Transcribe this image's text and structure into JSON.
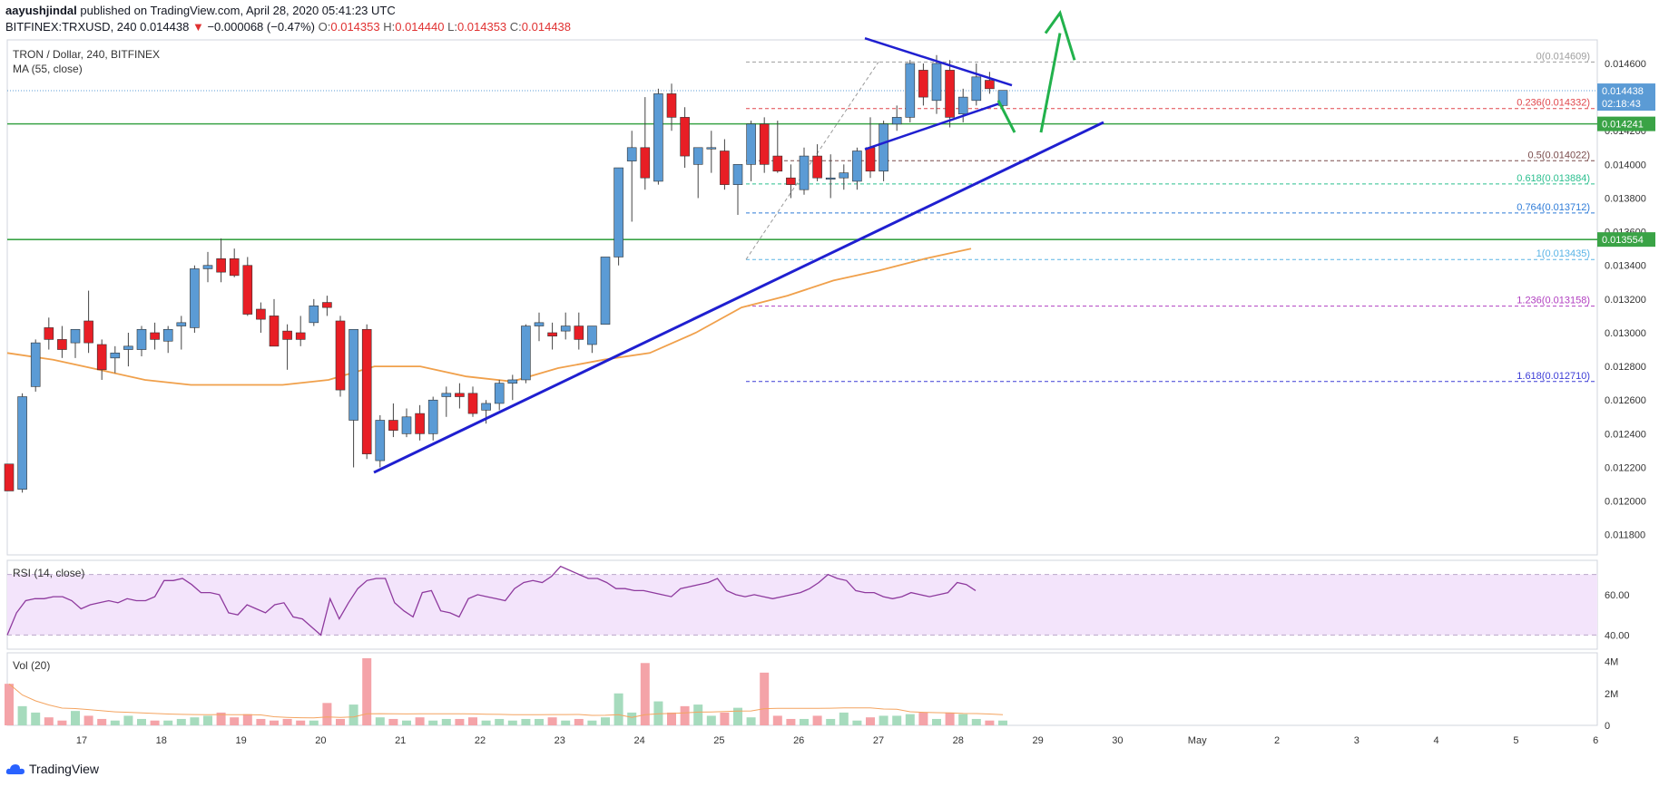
{
  "header": {
    "author": "aayushjindal",
    "published_text": "published on TradingView.com, April 28, 2020 05:41:23 UTC",
    "symbol": "BITFINEX:TRXUSD, 240",
    "last": "0.014438",
    "change_arrow": "▼",
    "change": "−0.000068 (−0.47%)",
    "o_label": "O:",
    "o": "0.014353",
    "h_label": "H:",
    "h": "0.014440",
    "l_label": "L:",
    "l": "0.014353",
    "c_label": "C:",
    "c": "0.014438"
  },
  "legend": {
    "title": "TRON / Dollar, 240, BITFINEX",
    "ma": "MA (55, close)",
    "rsi": "RSI (14, close)",
    "vol": "Vol (20)"
  },
  "footer": {
    "brand": "TradingView",
    "icon": "tradingview-cloud-icon"
  },
  "colors": {
    "up": "#5b9bd5",
    "down": "#e81e25",
    "ma": "#f0a04b",
    "trend": "#1f1fd0",
    "support": "#3aa346",
    "arrow": "#22b24c",
    "rsi": "#8e3a9e",
    "rsi_band": "#f3e4fb",
    "vol_up": "#a6dbbd",
    "vol_down": "#f4a3a8"
  },
  "chart_data": {
    "type": "candlestick",
    "title": "TRON / Dollar, 240, BITFINEX",
    "x_ticks": [
      "17",
      "18",
      "19",
      "20",
      "21",
      "22",
      "23",
      "24",
      "25",
      "26",
      "27",
      "28",
      "29",
      "30",
      "May",
      "2",
      "3",
      "4",
      "5",
      "6"
    ],
    "y_ticks": [
      "0.014600",
      "0.014400",
      "0.014200",
      "0.014000",
      "0.013800",
      "0.013600",
      "0.013400",
      "0.013200",
      "0.013000",
      "0.012800",
      "0.012600",
      "0.012400",
      "0.012200",
      "0.012000",
      "0.011800"
    ],
    "ylim": [
      0.01168,
      0.01474
    ],
    "last_price": {
      "value": 0.014438,
      "label": "0.014438",
      "countdown": "02:18:43"
    },
    "support_levels": [
      {
        "value": 0.014241,
        "label": "0.014241"
      },
      {
        "value": 0.013554,
        "label": "0.013554"
      }
    ],
    "fibonacci": [
      {
        "ratio": "0",
        "value": 0.014609,
        "label": "0(0.014609)",
        "color": "#9e9e9e"
      },
      {
        "ratio": "0.236",
        "value": 0.014332,
        "label": "0.236(0.014332)",
        "color": "#e0474c"
      },
      {
        "ratio": "0.5",
        "value": 0.014022,
        "label": "0.5(0.014022)",
        "color": "#7a4b4b"
      },
      {
        "ratio": "0.618",
        "value": 0.013884,
        "label": "0.618(0.013884)",
        "color": "#2bbf8f"
      },
      {
        "ratio": "0.764",
        "value": 0.013712,
        "label": "0.764(0.013712)",
        "color": "#2d7bd8"
      },
      {
        "ratio": "1",
        "value": 0.013435,
        "label": "1(0.013435)",
        "color": "#59b4e6"
      },
      {
        "ratio": "1.236",
        "value": 0.013158,
        "label": "1.236(0.013158)",
        "color": "#b13fc0"
      },
      {
        "ratio": "1.618",
        "value": 0.01271,
        "label": "1.618(0.012710)",
        "color": "#3b3bd6"
      }
    ],
    "candles": [
      [
        0.01222,
        0.01222,
        0.01206,
        0.01206
      ],
      [
        0.01207,
        0.01264,
        0.01205,
        0.01262
      ],
      [
        0.01268,
        0.01296,
        0.01265,
        0.01294
      ],
      [
        0.01303,
        0.01309,
        0.0129,
        0.01296
      ],
      [
        0.01296,
        0.01304,
        0.01285,
        0.0129
      ],
      [
        0.01294,
        0.01302,
        0.01285,
        0.01302
      ],
      [
        0.01307,
        0.01325,
        0.01288,
        0.01294
      ],
      [
        0.01293,
        0.01296,
        0.01272,
        0.01278
      ],
      [
        0.01285,
        0.01292,
        0.01276,
        0.01288
      ],
      [
        0.0129,
        0.013,
        0.0128,
        0.01292
      ],
      [
        0.0129,
        0.01304,
        0.01286,
        0.01302
      ],
      [
        0.013,
        0.01306,
        0.0129,
        0.01296
      ],
      [
        0.01295,
        0.01304,
        0.01288,
        0.01302
      ],
      [
        0.01304,
        0.0131,
        0.0129,
        0.01306
      ],
      [
        0.01303,
        0.0134,
        0.013,
        0.01338
      ],
      [
        0.01338,
        0.01348,
        0.0133,
        0.0134
      ],
      [
        0.01344,
        0.01356,
        0.0133,
        0.01336
      ],
      [
        0.01344,
        0.0135,
        0.01333,
        0.01334
      ],
      [
        0.0134,
        0.01345,
        0.0131,
        0.01311
      ],
      [
        0.01314,
        0.01318,
        0.013,
        0.01308
      ],
      [
        0.0131,
        0.0132,
        0.01292,
        0.01292
      ],
      [
        0.01301,
        0.01305,
        0.01278,
        0.01296
      ],
      [
        0.013,
        0.0131,
        0.01292,
        0.01296
      ],
      [
        0.01306,
        0.0132,
        0.01304,
        0.01316
      ],
      [
        0.01318,
        0.01322,
        0.0131,
        0.01315
      ],
      [
        0.01307,
        0.0131,
        0.01262,
        0.01266
      ],
      [
        0.01248,
        0.01302,
        0.0122,
        0.01302
      ],
      [
        0.01302,
        0.01305,
        0.01225,
        0.01228
      ],
      [
        0.01224,
        0.01251,
        0.0122,
        0.01248
      ],
      [
        0.01248,
        0.01258,
        0.01238,
        0.01242
      ],
      [
        0.0124,
        0.01255,
        0.01238,
        0.0125
      ],
      [
        0.01252,
        0.01257,
        0.01236,
        0.0124
      ],
      [
        0.0124,
        0.01262,
        0.01236,
        0.0126
      ],
      [
        0.01262,
        0.01268,
        0.0125,
        0.01264
      ],
      [
        0.01264,
        0.0127,
        0.01255,
        0.01262
      ],
      [
        0.01264,
        0.01268,
        0.0125,
        0.01252
      ],
      [
        0.01254,
        0.0126,
        0.01246,
        0.01258
      ],
      [
        0.01258,
        0.01272,
        0.01254,
        0.0127
      ],
      [
        0.0127,
        0.01275,
        0.0126,
        0.01272
      ],
      [
        0.01272,
        0.01305,
        0.0127,
        0.01304
      ],
      [
        0.01304,
        0.01312,
        0.01295,
        0.01306
      ],
      [
        0.013,
        0.01306,
        0.0129,
        0.01298
      ],
      [
        0.01301,
        0.01312,
        0.01296,
        0.01304
      ],
      [
        0.01304,
        0.01312,
        0.0129,
        0.01296
      ],
      [
        0.01293,
        0.01304,
        0.01288,
        0.01304
      ],
      [
        0.01305,
        0.01345,
        0.01305,
        0.01345
      ],
      [
        0.01345,
        0.01398,
        0.0134,
        0.01398
      ],
      [
        0.01402,
        0.0142,
        0.01366,
        0.0141
      ],
      [
        0.0141,
        0.0144,
        0.01385,
        0.01392
      ],
      [
        0.0139,
        0.01445,
        0.01388,
        0.01442
      ],
      [
        0.01442,
        0.01448,
        0.0142,
        0.01428
      ],
      [
        0.01428,
        0.01434,
        0.01398,
        0.01405
      ],
      [
        0.014,
        0.0141,
        0.0138,
        0.0141
      ],
      [
        0.0141,
        0.0142,
        0.01395,
        0.0141
      ],
      [
        0.01408,
        0.01415,
        0.01385,
        0.01388
      ],
      [
        0.01388,
        0.014,
        0.0137,
        0.014
      ],
      [
        0.014,
        0.01426,
        0.0139,
        0.01424
      ],
      [
        0.01424,
        0.01428,
        0.01395,
        0.014
      ],
      [
        0.01405,
        0.01426,
        0.01395,
        0.01396
      ],
      [
        0.01392,
        0.014,
        0.0138,
        0.01388
      ],
      [
        0.01385,
        0.0141,
        0.01382,
        0.01405
      ],
      [
        0.01405,
        0.01412,
        0.0139,
        0.01392
      ],
      [
        0.01392,
        0.01406,
        0.0138,
        0.01392
      ],
      [
        0.01392,
        0.014,
        0.01385,
        0.01395
      ],
      [
        0.0139,
        0.0141,
        0.01385,
        0.01408
      ],
      [
        0.0141,
        0.01428,
        0.01392,
        0.01396
      ],
      [
        0.01396,
        0.01426,
        0.0139,
        0.01424
      ],
      [
        0.01424,
        0.01435,
        0.0142,
        0.01428
      ],
      [
        0.01428,
        0.01462,
        0.01425,
        0.0146
      ],
      [
        0.01456,
        0.0146,
        0.01435,
        0.0144
      ],
      [
        0.01438,
        0.01465,
        0.0143,
        0.0146
      ],
      [
        0.01456,
        0.01462,
        0.01422,
        0.01428
      ],
      [
        0.0143,
        0.01445,
        0.01425,
        0.0144
      ],
      [
        0.01438,
        0.0146,
        0.01435,
        0.01452
      ],
      [
        0.0145,
        0.01455,
        0.01442,
        0.01445
      ],
      [
        0.01435,
        0.01444,
        0.01434,
        0.01444
      ]
    ],
    "ma55": [
      0.01288,
      0.01284,
      0.01278,
      0.01272,
      0.01269,
      0.01269,
      0.01269,
      0.01272,
      0.0128,
      0.0128,
      0.01274,
      0.01271,
      0.01279,
      0.01284,
      0.01288,
      0.013,
      0.01315,
      0.01322,
      0.01331,
      0.01337,
      0.01344,
      0.0135
    ],
    "rsi": {
      "levels": [
        70,
        40
      ],
      "ylim": [
        33,
        77
      ],
      "y_ticks": [
        "60.00",
        "40.00"
      ],
      "values": [
        40,
        51,
        57,
        58,
        58,
        59,
        59,
        57,
        53,
        55,
        56,
        57,
        56,
        58,
        57,
        57,
        59,
        67,
        67,
        68,
        65,
        61,
        61,
        60,
        51,
        50,
        55,
        53,
        51,
        55,
        56,
        49,
        48,
        44,
        40,
        58,
        48,
        56,
        63,
        67,
        68,
        68,
        56,
        52,
        49,
        61,
        62,
        52,
        51,
        49,
        58,
        60,
        59,
        58,
        57,
        63,
        66,
        67,
        66,
        69,
        74,
        72,
        70,
        68,
        68,
        66,
        63,
        63,
        62,
        62,
        61,
        60,
        59,
        63,
        64,
        65,
        66,
        68,
        62,
        60,
        59,
        60,
        59,
        58,
        59,
        60,
        61,
        63,
        66,
        70,
        68,
        67,
        62,
        61,
        61,
        59,
        58,
        59,
        61,
        60,
        59,
        60,
        61,
        66,
        65,
        62
      ]
    },
    "volume": {
      "ylim": [
        0,
        4.2
      ],
      "y_ticks": [
        "4M",
        "2M",
        "0"
      ],
      "values": [
        2.6,
        1.2,
        0.8,
        0.5,
        0.3,
        0.9,
        0.6,
        0.4,
        0.3,
        0.6,
        0.4,
        0.3,
        0.3,
        0.4,
        0.5,
        0.6,
        0.8,
        0.5,
        0.7,
        0.4,
        0.3,
        0.4,
        0.3,
        0.3,
        1.4,
        0.4,
        1.3,
        4.2,
        0.5,
        0.4,
        0.3,
        0.5,
        0.3,
        0.4,
        0.4,
        0.5,
        0.3,
        0.4,
        0.3,
        0.4,
        0.4,
        0.5,
        0.3,
        0.4,
        0.3,
        0.5,
        2.0,
        0.8,
        3.9,
        1.5,
        0.8,
        1.2,
        1.3,
        0.6,
        0.8,
        1.1,
        0.5,
        3.3,
        0.6,
        0.4,
        0.4,
        0.6,
        0.4,
        0.8,
        0.3,
        0.5,
        0.6,
        0.6,
        0.7,
        0.8,
        0.4,
        0.8,
        0.7,
        0.4,
        0.3,
        0.3
      ]
    }
  }
}
